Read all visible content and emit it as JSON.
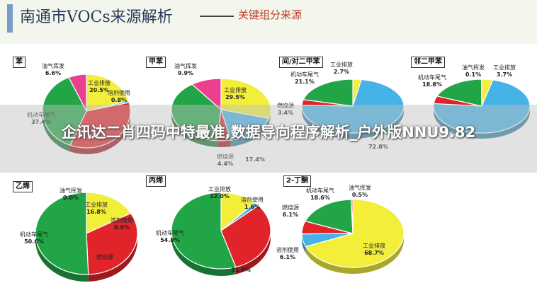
{
  "header": {
    "title": "南通市VOCs来源解析",
    "subtitle": "关键组分来源"
  },
  "overlay_text": "企讯达二肖四码中特最准,数据导向程序解析_户外版NNU9.82",
  "colors": {
    "工业排放": "#f2ee3a",
    "溶剂使用": "#45b3e6",
    "燃烧源": "#e0242a",
    "机动车尾气": "#22a546",
    "油气挥发": "#ec3f8f"
  },
  "chart_data": [
    {
      "type": "pie",
      "panel_label": "苯",
      "slices": [
        {
          "category": "工业排放",
          "value": 20.5,
          "label": "工业排放",
          "value_label": "20.5%"
        },
        {
          "category": "溶剂使用",
          "value": 0.8,
          "label": "溶剂使用",
          "value_label": "0.8%"
        },
        {
          "category": "燃烧源",
          "value": 34.8,
          "label": "",
          "value_label": ""
        },
        {
          "category": "机动车尾气",
          "value": 37.4,
          "label": "机动车尾气",
          "value_label": "37.4%"
        },
        {
          "category": "油气挥发",
          "value": 6.6,
          "label": "油气挥发",
          "value_label": "6.6%"
        }
      ]
    },
    {
      "type": "pie",
      "panel_label": "甲苯",
      "slices": [
        {
          "category": "工业排放",
          "value": 29.5,
          "label": "工业排放",
          "value_label": "29.5%"
        },
        {
          "category": "溶剂使用",
          "value": 17.4,
          "label": "",
          "value_label": "17.4%"
        },
        {
          "category": "燃烧源",
          "value": 4.4,
          "label": "燃烧源",
          "value_label": "4.4%"
        },
        {
          "category": "机动车尾气",
          "value": 38.8,
          "label": "",
          "value_label": ""
        },
        {
          "category": "油气挥发",
          "value": 9.9,
          "label": "油气挥发",
          "value_label": "9.9%"
        }
      ]
    },
    {
      "type": "pie",
      "panel_label": "间/对二甲苯",
      "slices": [
        {
          "category": "工业排放",
          "value": 2.7,
          "label": "工业排放",
          "value_label": "2.7%"
        },
        {
          "category": "溶剂使用",
          "value": 72.8,
          "label": "",
          "value_label": "72.8%"
        },
        {
          "category": "燃烧源",
          "value": 3.4,
          "label": "燃烧源",
          "value_label": "3.4%"
        },
        {
          "category": "机动车尾气",
          "value": 21.1,
          "label": "机动车尾气",
          "value_label": "21.1%"
        }
      ]
    },
    {
      "type": "pie",
      "panel_label": "邻二甲苯",
      "slices": [
        {
          "category": "工业排放",
          "value": 3.7,
          "label": "工业排放",
          "value_label": "3.7%"
        },
        {
          "category": "溶剂使用",
          "value": 72.8,
          "label": "",
          "value_label": ""
        },
        {
          "category": "燃烧源",
          "value": 4.6,
          "label": "",
          "value_label": ""
        },
        {
          "category": "机动车尾气",
          "value": 18.8,
          "label": "机动车尾气",
          "value_label": "18.8%"
        },
        {
          "category": "油气挥发",
          "value": 0.1,
          "label": "油气挥发",
          "value_label": "0.1%"
        }
      ]
    },
    {
      "type": "pie",
      "panel_label": "乙烯",
      "slices": [
        {
          "category": "工业排放",
          "value": 16.8,
          "label": "工业排放",
          "value_label": "16.8%"
        },
        {
          "category": "溶剂使用",
          "value": 0.0,
          "label": "溶剂使用",
          "value_label": "0.0%"
        },
        {
          "category": "燃烧源",
          "value": 32.6,
          "label": "燃烧源",
          "value_label": ""
        },
        {
          "category": "机动车尾气",
          "value": 50.6,
          "label": "机动车尾气",
          "value_label": "50.6%"
        },
        {
          "category": "油气挥发",
          "value": 0.0,
          "label": "油气挥发",
          "value_label": "0.0%"
        }
      ]
    },
    {
      "type": "pie",
      "panel_label": "丙烯",
      "slices": [
        {
          "category": "工业排放",
          "value": 12.0,
          "label": "工业排放",
          "value_label": "12.0%"
        },
        {
          "category": "溶剂使用",
          "value": 1.6,
          "label": "溶剂使用",
          "value_label": "1.6%"
        },
        {
          "category": "燃烧源",
          "value": 31.6,
          "label": "",
          "value_label": "31.6%"
        },
        {
          "category": "机动车尾气",
          "value": 54.8,
          "label": "机动车尾气",
          "value_label": "54.8%"
        }
      ]
    },
    {
      "type": "pie",
      "panel_label": "2-丁酮",
      "slices": [
        {
          "category": "工业排放",
          "value": 68.7,
          "label": "工业排放",
          "value_label": "68.7%"
        },
        {
          "category": "溶剂使用",
          "value": 6.1,
          "label": "溶剂使用",
          "value_label": "6.1%"
        },
        {
          "category": "燃烧源",
          "value": 6.1,
          "label": "燃烧源",
          "value_label": "6.1%"
        },
        {
          "category": "机动车尾气",
          "value": 18.6,
          "label": "机动车尾气",
          "value_label": "18.6%"
        },
        {
          "category": "油气挥发",
          "value": 0.5,
          "label": "油气挥发",
          "value_label": "0.5%"
        }
      ]
    }
  ]
}
